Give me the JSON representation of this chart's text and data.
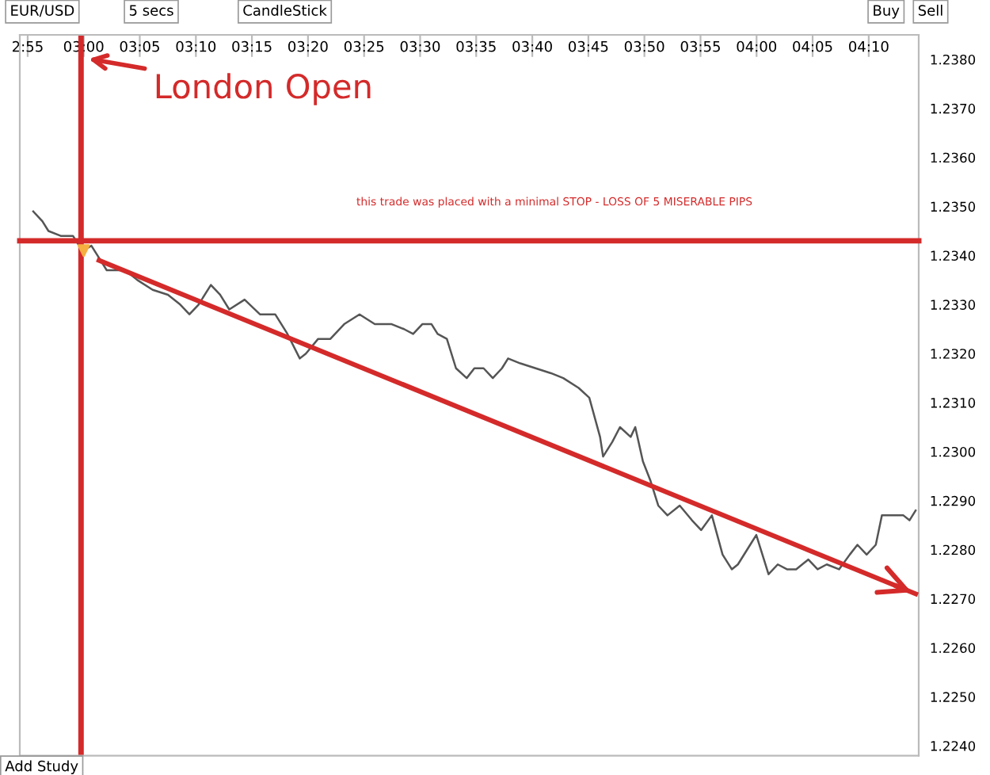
{
  "chart_data": {
    "type": "line",
    "title": "EUR/USD",
    "annotations": [
      "5 secs",
      "CandleStick",
      "Buy",
      "Sell",
      "Add Study",
      "London Open",
      "this trade was placed with a minimal STOP - LOSS OF 5 MISERABLE PIPS"
    ],
    "x": [
      2.925,
      2.9385,
      2.9476,
      2.9658,
      2.984,
      2.9932,
      3.0,
      3.0114,
      3.0205,
      3.0342,
      3.0524,
      3.0615,
      3.0797,
      3.1025,
      3.1252,
      3.1434,
      3.1571,
      3.1708,
      3.189,
      3.2027,
      3.2163,
      3.2391,
      3.2619,
      3.2846,
      3.3028,
      3.3211,
      3.3302,
      3.3484,
      3.3666,
      3.3871,
      3.4099,
      3.4326,
      3.4577,
      3.4759,
      3.4896,
      3.5032,
      3.5169,
      3.526,
      3.5397,
      3.5533,
      3.5692,
      3.5806,
      3.5943,
      3.608,
      3.6216,
      3.6307,
      3.6489,
      3.6717,
      3.6945,
      3.7127,
      3.7355,
      3.7514,
      3.7674,
      3.7719,
      3.7856,
      3.797,
      3.8129,
      3.8197,
      3.8311,
      3.8425,
      3.8539,
      3.8676,
      3.8858,
      3.904,
      3.9176,
      3.9336,
      3.9495,
      3.9632,
      3.9723,
      3.9905,
      3.9996,
      4.0087,
      4.0178,
      4.0315,
      4.0452,
      4.0588,
      4.077,
      4.0907,
      4.1043,
      4.1226,
      4.1385,
      4.1499,
      4.1636,
      4.1772,
      4.1863,
      4.2,
      4.2182,
      4.2273,
      4.2364
    ],
    "series": [
      {
        "color": "#555555",
        "values": [
          1.2349,
          1.2347,
          1.2345,
          1.2344,
          1.2344,
          1.2342,
          1.2341,
          1.2342,
          1.234,
          1.2337,
          1.2337,
          1.2337,
          1.2335,
          1.2333,
          1.2332,
          1.233,
          1.2328,
          1.233,
          1.2334,
          1.2332,
          1.2329,
          1.2331,
          1.2328,
          1.2328,
          1.2324,
          1.2319,
          1.232,
          1.2323,
          1.2323,
          1.2326,
          1.2328,
          1.2326,
          1.2326,
          1.2325,
          1.2324,
          1.2326,
          1.2326,
          1.2324,
          1.2323,
          1.2317,
          1.2315,
          1.2317,
          1.2317,
          1.2315,
          1.2317,
          1.2319,
          1.2318,
          1.2317,
          1.2316,
          1.2315,
          1.2313,
          1.2311,
          1.2303,
          1.2299,
          1.2302,
          1.2305,
          1.2303,
          1.2305,
          1.2298,
          1.2294,
          1.2289,
          1.2287,
          1.2289,
          1.2286,
          1.2284,
          1.2287,
          1.2279,
          1.2276,
          1.2277,
          1.2281,
          1.2283,
          1.2279,
          1.2275,
          1.2277,
          1.2276,
          1.2276,
          1.2278,
          1.2276,
          1.2277,
          1.2276,
          1.2279,
          1.2281,
          1.2279,
          1.2281,
          1.2287,
          1.2287,
          1.2287,
          1.2286,
          1.2288
        ]
      },
      {
        "type": "line",
        "color": "#d42a2a",
        "x": [
          3.0228,
          4.2364
        ],
        "values": [
          1.2339,
          1.2271
        ]
      },
      {
        "type": "scatter",
        "color": "#f5b041",
        "marker": "triangle",
        "x": [
          3.0
        ],
        "values": [
          1.2341
        ]
      }
    ],
    "ref_lines": [
      {
        "axis": "x",
        "value": 2.996,
        "color": "#d42a2a"
      },
      {
        "axis": "y",
        "value": 1.2343,
        "color": "#d42a2a"
      }
    ],
    "xlim": [
      2.905,
      4.241
    ],
    "xticks": [
      {
        "value": 2.9167,
        "label": "2:55"
      },
      {
        "value": 3.0,
        "label": "03:00"
      },
      {
        "value": 3.0833,
        "label": "03:05"
      },
      {
        "value": 3.1667,
        "label": "03:10"
      },
      {
        "value": 3.25,
        "label": "03:15"
      },
      {
        "value": 3.3333,
        "label": "03:20"
      },
      {
        "value": 3.4167,
        "label": "03:25"
      },
      {
        "value": 3.5,
        "label": "03:30"
      },
      {
        "value": 3.5833,
        "label": "03:35"
      },
      {
        "value": 3.6667,
        "label": "03:40"
      },
      {
        "value": 3.75,
        "label": "03:45"
      },
      {
        "value": 3.8333,
        "label": "03:50"
      },
      {
        "value": 3.9167,
        "label": "03:55"
      },
      {
        "value": 4.0,
        "label": "04:00"
      },
      {
        "value": 4.0833,
        "label": "04:05"
      },
      {
        "value": 4.1667,
        "label": "04:10"
      }
    ],
    "ylim": [
      1.2238,
      1.2385
    ],
    "yticks": [
      {
        "value": 1.224,
        "label": "1.2240"
      },
      {
        "value": 1.225,
        "label": "1.2250"
      },
      {
        "value": 1.226,
        "label": "1.2260"
      },
      {
        "value": 1.227,
        "label": "1.2270"
      },
      {
        "value": 1.228,
        "label": "1.2280"
      },
      {
        "value": 1.229,
        "label": "1.2290"
      },
      {
        "value": 1.23,
        "label": "1.2300"
      },
      {
        "value": 1.231,
        "label": "1.2310"
      },
      {
        "value": 1.232,
        "label": "1.2320"
      },
      {
        "value": 1.233,
        "label": "1.2330"
      },
      {
        "value": 1.234,
        "label": "1.2340"
      },
      {
        "value": 1.235,
        "label": "1.2350"
      },
      {
        "value": 1.236,
        "label": "1.2360"
      },
      {
        "value": 1.237,
        "label": "1.2370"
      },
      {
        "value": 1.238,
        "label": "1.2380"
      }
    ],
    "grid": false,
    "legend": false
  }
}
